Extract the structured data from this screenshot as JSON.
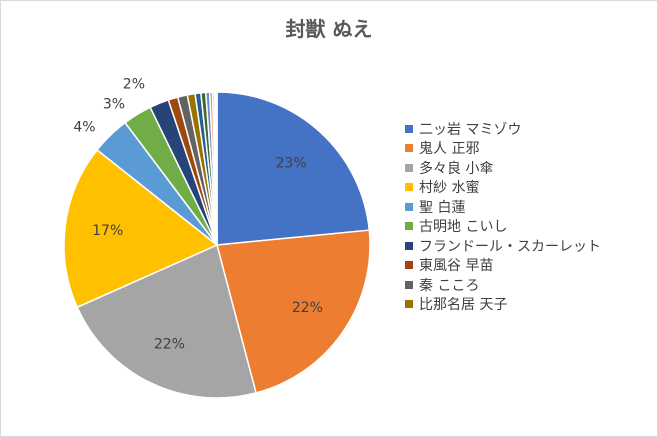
{
  "chart_data": {
    "type": "pie",
    "title": "封獣 ぬえ",
    "legend_position": "right",
    "series": [
      {
        "name": "二ッ岩 マミゾウ",
        "value": 23,
        "label": "23%",
        "color": "#4472C4"
      },
      {
        "name": "鬼人 正邪",
        "value": 22,
        "label": "22%",
        "color": "#ED7D31"
      },
      {
        "name": "多々良 小傘",
        "value": 22,
        "label": "22%",
        "color": "#A5A5A5"
      },
      {
        "name": "村紗 水蜜",
        "value": 17,
        "label": "17%",
        "color": "#FFC000"
      },
      {
        "name": "聖 白蓮",
        "value": 4,
        "label": "4%",
        "color": "#5B9BD5"
      },
      {
        "name": "古明地 こいし",
        "value": 3,
        "label": "3%",
        "color": "#70AD47"
      },
      {
        "name": "フランドール・スカーレット",
        "value": 2,
        "label": "2%",
        "color": "#264478"
      },
      {
        "name": "東風谷 早苗",
        "value": 1,
        "label": "",
        "color": "#9E480E"
      },
      {
        "name": "秦 こころ",
        "value": 1,
        "label": "",
        "color": "#636363"
      },
      {
        "name": "比那名居 天子",
        "value": 0.8,
        "label": "",
        "color": "#997300"
      },
      {
        "name": "",
        "value": 0.6,
        "label": "",
        "color": "#255E91"
      },
      {
        "name": "",
        "value": 0.5,
        "label": "",
        "color": "#43682B"
      },
      {
        "name": "",
        "value": 0.4,
        "label": "",
        "color": "#698ED0"
      },
      {
        "name": "",
        "value": 0.3,
        "label": "",
        "color": "#F1975A"
      },
      {
        "name": "",
        "value": 0.2,
        "label": "",
        "color": "#B7B7B7"
      },
      {
        "name": "",
        "value": 0.15,
        "label": "",
        "color": "#FFCD33"
      },
      {
        "name": "",
        "value": 0.1,
        "label": "",
        "color": "#7CAFDD"
      }
    ]
  }
}
